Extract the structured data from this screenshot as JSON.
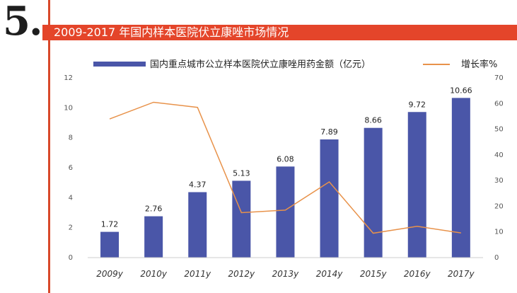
{
  "header": {
    "section_number": "5.",
    "title": "2009-2017 年国内样本医院伏立康唑市场情况"
  },
  "chart_data": {
    "type": "bar+line",
    "categories": [
      "2009y",
      "2010y",
      "2011y",
      "2012y",
      "2013y",
      "2014y",
      "2015y",
      "2016y",
      "2017y"
    ],
    "series": [
      {
        "name": "国内重点城市公立样本医院伏立康唑用药金额（亿元）",
        "type": "bar",
        "axis": "left",
        "values": [
          1.72,
          2.76,
          4.37,
          5.13,
          6.08,
          7.89,
          8.66,
          9.72,
          10.66
        ],
        "labels": [
          "1.72",
          "2.76",
          "4.37",
          "5.13",
          "6.08",
          "7.89",
          "8.66",
          "9.72",
          "10.66"
        ]
      },
      {
        "name": "增长率%",
        "type": "line",
        "axis": "right",
        "values": [
          54,
          60.5,
          58.5,
          17.5,
          18.5,
          29.5,
          9.5,
          12.2,
          9.6
        ]
      }
    ],
    "y_left": {
      "min": 0,
      "max": 12,
      "ticks": [
        "0",
        "2",
        "4",
        "6",
        "8",
        "10",
        "12"
      ]
    },
    "y_right": {
      "min": 0,
      "max": 70,
      "ticks": [
        "0",
        "10",
        "20",
        "30",
        "40",
        "50",
        "60",
        "70"
      ]
    },
    "legend_position": "top",
    "grid": false,
    "colors": {
      "bar": "#4a56a8",
      "line": "#e8924a",
      "title_bar": "#e4452a",
      "left_rule": "#d8482a"
    }
  }
}
